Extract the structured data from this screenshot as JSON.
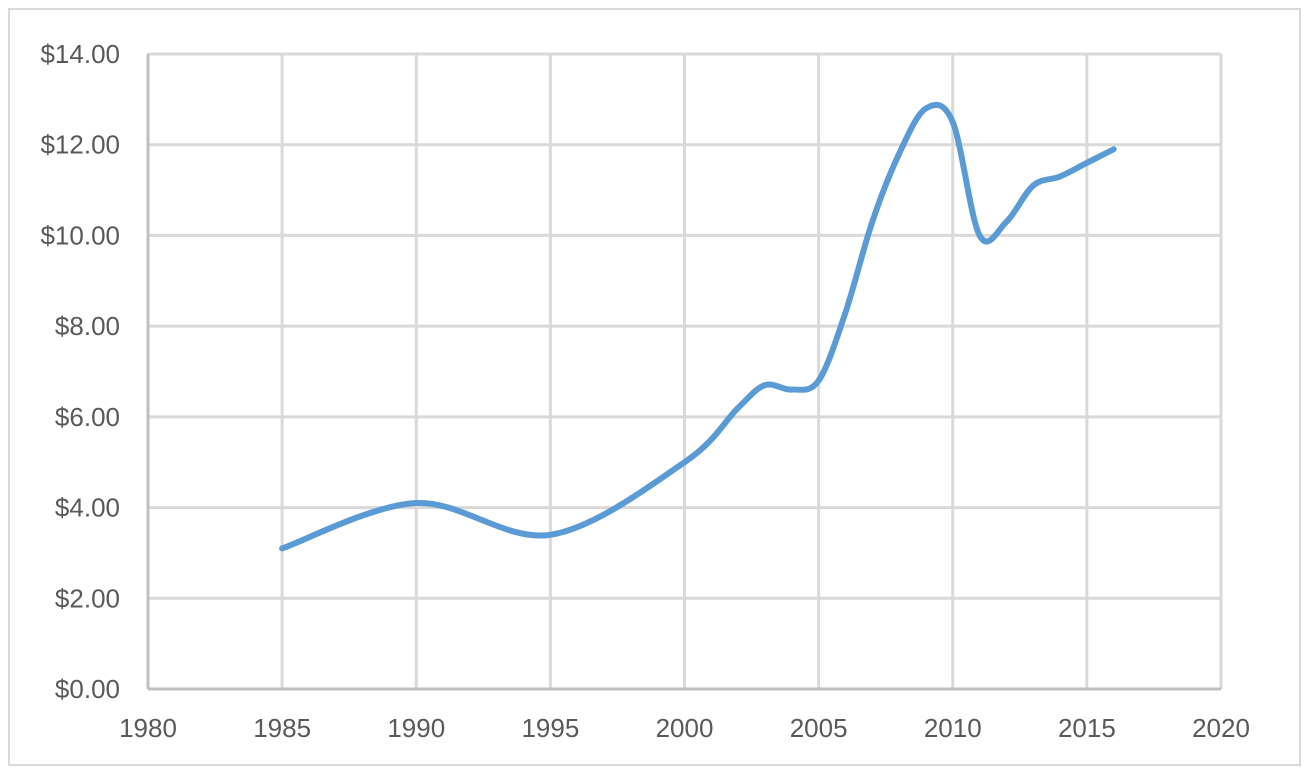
{
  "chart_data": {
    "type": "line",
    "title": "",
    "xlabel": "",
    "ylabel": "",
    "xlim": [
      1980,
      2020
    ],
    "ylim": [
      0,
      14
    ],
    "x_ticks": [
      1980,
      1985,
      1990,
      1995,
      2000,
      2005,
      2010,
      2015,
      2020
    ],
    "y_ticks": [
      0,
      2,
      4,
      6,
      8,
      10,
      12,
      14
    ],
    "x_tick_labels": [
      "1980",
      "1985",
      "1990",
      "1995",
      "2000",
      "2005",
      "2010",
      "2015",
      "2020"
    ],
    "y_tick_labels": [
      "$0.00",
      "$2.00",
      "$4.00",
      "$6.00",
      "$8.00",
      "$10.00",
      "$12.00",
      "$14.00"
    ],
    "grid": true,
    "legend": "none",
    "smooth": true,
    "series": [
      {
        "color": "#5b9bd5",
        "x": [
          1985,
          1990,
          1995,
          2000,
          2002,
          2003,
          2004,
          2005,
          2006,
          2007,
          2008,
          2009,
          2010,
          2011,
          2012,
          2013,
          2014,
          2015,
          2016
        ],
        "y": [
          3.1,
          4.1,
          3.4,
          5.0,
          6.2,
          6.7,
          6.6,
          6.8,
          8.3,
          10.3,
          11.8,
          12.8,
          12.5,
          10.0,
          10.3,
          11.1,
          11.3,
          11.6,
          11.9
        ]
      }
    ]
  }
}
